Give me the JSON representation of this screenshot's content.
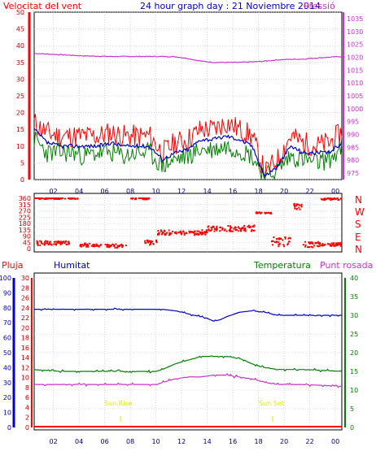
{
  "header": {
    "wind_label": "Velocitat del vent",
    "title": "24 hour graph day : 21 Noviembre 2014",
    "pressure_label": "Pressió"
  },
  "direction_labels": [
    "N",
    "W",
    "S",
    "E",
    "N"
  ],
  "lower_header": {
    "rain_label": "Pluja",
    "humidity_label": "Humitat",
    "temperature_label": "Temperatura",
    "dewpoint_label": "Punt rosada"
  },
  "sun": {
    "sunrise_label": "Sun Rise",
    "sunset_label": "Sun Set",
    "sunrise_hour": 6.8,
    "sunset_hour": 18.9
  },
  "colors": {
    "wind_gust": "#ff0000",
    "wind_avg": "#008000",
    "wind_mean": "#0000cc",
    "pressure": "#cc33cc",
    "direction": "#ff0000",
    "humidity": "#0000cc",
    "temperature": "#008000",
    "dewpoint": "#cc33cc",
    "rain": "#ff0000",
    "sun_text": "#e6e600",
    "grid": "#bbbbbb"
  },
  "chart_data": [
    {
      "type": "line",
      "name": "wind_and_pressure",
      "x_ticks": [
        "02",
        "04",
        "06",
        "08",
        "10",
        "12",
        "14",
        "16",
        "18",
        "20",
        "22",
        "00"
      ],
      "y_left_ticks": [
        "0",
        "5",
        "10",
        "15",
        "20",
        "25",
        "30",
        "35",
        "40",
        "45",
        "50"
      ],
      "y_left_range": [
        0,
        50
      ],
      "y_right_ticks": [
        "975",
        "980",
        "985",
        "990",
        "995",
        "1000",
        "1005",
        "1010",
        "1015",
        "1020",
        "1025",
        "1030",
        "1035"
      ],
      "y_right_range": [
        972.5,
        1037.5
      ],
      "grid": true,
      "series": {
        "pressure_x": [
          0,
          2,
          4,
          6,
          8,
          10,
          11,
          12,
          13,
          14,
          15,
          16,
          17,
          18,
          19,
          20,
          21,
          22,
          23,
          24
        ],
        "pressure_y": [
          1021.5,
          1021,
          1020.5,
          1020.3,
          1020.3,
          1020.3,
          1020.2,
          1019.5,
          1018.5,
          1018,
          1018,
          1018,
          1018.2,
          1018.5,
          1019,
          1019.2,
          1019.3,
          1019.7,
          1020,
          1020.3
        ],
        "gust_x": [
          0,
          1,
          2,
          3,
          4,
          5,
          6,
          7,
          8,
          9,
          10,
          11,
          12,
          13,
          14,
          15,
          16,
          17,
          18,
          19,
          20,
          21,
          22,
          23,
          24
        ],
        "gust_y": [
          17,
          14,
          13,
          13,
          13,
          13,
          14,
          13,
          13,
          13,
          8,
          11,
          12,
          15,
          15,
          17,
          15,
          13,
          2,
          6,
          13,
          11,
          10,
          11,
          14
        ],
        "avg_x": [
          0,
          1,
          2,
          3,
          4,
          5,
          6,
          7,
          8,
          9,
          10,
          11,
          12,
          13,
          14,
          15,
          16,
          17,
          18,
          19,
          20,
          21,
          22,
          23,
          24
        ],
        "avg_y": [
          12,
          8,
          8,
          8,
          7,
          8,
          8,
          7,
          8,
          8,
          4,
          6,
          7,
          9,
          9,
          10,
          9,
          7,
          1,
          3,
          7,
          6,
          5,
          6,
          9
        ],
        "mean_x": [
          0,
          1,
          2,
          3,
          4,
          5,
          6,
          7,
          8,
          9,
          10,
          11,
          12,
          13,
          14,
          15,
          16,
          17,
          18,
          19,
          20,
          21,
          22,
          23,
          24
        ],
        "mean_y": [
          15,
          11,
          10,
          10,
          10,
          10,
          11,
          10,
          10,
          10,
          6,
          8,
          9,
          12,
          12,
          13,
          12,
          10,
          1,
          4,
          10,
          8,
          8,
          8,
          11
        ]
      }
    },
    {
      "type": "scatter",
      "name": "wind_direction",
      "x_ticks": [
        "02",
        "04",
        "06",
        "08",
        "10",
        "12",
        "14",
        "16",
        "18",
        "20",
        "22",
        "00"
      ],
      "y_ticks": [
        "0",
        "45",
        "90",
        "135",
        "180",
        "225",
        "270",
        "315",
        "360"
      ],
      "y_range": [
        0,
        360
      ],
      "grid": true,
      "clusters": [
        {
          "from": 0,
          "to": 3.5,
          "deg": 360,
          "spread": 6
        },
        {
          "from": 0.2,
          "to": 2.8,
          "deg": 40,
          "spread": 16
        },
        {
          "from": 3.5,
          "to": 5.2,
          "deg": 25,
          "spread": 12
        },
        {
          "from": 5.5,
          "to": 7.2,
          "deg": 20,
          "spread": 14
        },
        {
          "from": 7.5,
          "to": 9.0,
          "deg": 360,
          "spread": 8
        },
        {
          "from": 8.6,
          "to": 9.6,
          "deg": 45,
          "spread": 20
        },
        {
          "from": 9.6,
          "to": 13.5,
          "deg": 115,
          "spread": 18
        },
        {
          "from": 13.5,
          "to": 17.2,
          "deg": 145,
          "spread": 22
        },
        {
          "from": 17.3,
          "to": 18.5,
          "deg": 255,
          "spread": 5
        },
        {
          "from": 18.5,
          "to": 20.0,
          "deg": 50,
          "spread": 35
        },
        {
          "from": 20.2,
          "to": 21.0,
          "deg": 300,
          "spread": 20
        },
        {
          "from": 21.0,
          "to": 22.2,
          "deg": 30,
          "spread": 20
        },
        {
          "from": 22.4,
          "to": 24.0,
          "deg": 355,
          "spread": 8
        },
        {
          "from": 22.2,
          "to": 24.0,
          "deg": 30,
          "spread": 12
        }
      ]
    },
    {
      "type": "line",
      "name": "humidity_temperature_dewpoint_rain",
      "x_ticks": [
        "02",
        "04",
        "06",
        "08",
        "10",
        "12",
        "14",
        "16",
        "18",
        "20",
        "22",
        "00"
      ],
      "y_rain_ticks": [
        "0",
        "2",
        "4",
        "6",
        "8",
        "10",
        "12",
        "14",
        "16",
        "18",
        "20",
        "22",
        "24",
        "26",
        "28",
        "30"
      ],
      "y_humidity_ticks": [
        "0",
        "10",
        "20",
        "30",
        "40",
        "50",
        "60",
        "70",
        "80",
        "90",
        "100"
      ],
      "y_temperature_ticks": [
        "0",
        "5",
        "10",
        "15",
        "20",
        "25",
        "30",
        "35",
        "40"
      ],
      "y_temperature_range": [
        0,
        40
      ],
      "grid": true,
      "series": {
        "humidity_x": [
          0,
          9.5,
          10,
          11,
          12,
          13,
          13.5,
          14,
          14.5,
          15,
          16,
          17,
          18,
          18.5,
          19,
          24
        ],
        "humidity_y": [
          79,
          79,
          79,
          78,
          76,
          74,
          73,
          71,
          72,
          74,
          77,
          78,
          77,
          76,
          75,
          75
        ],
        "temperature_x": [
          0,
          2,
          4,
          6,
          8,
          9.5,
          10,
          11,
          12,
          13,
          14,
          15,
          16,
          17,
          18,
          19,
          21,
          24
        ],
        "temperature_y": [
          15.5,
          15,
          15,
          15,
          15,
          15,
          15.5,
          17,
          18,
          19,
          19,
          19,
          18.5,
          17,
          16,
          15.5,
          15.5,
          15
        ],
        "dewpoint_x": [
          0,
          2,
          4,
          6,
          8,
          9.5,
          10,
          11,
          12,
          13,
          14,
          15,
          16,
          17,
          18,
          19,
          21,
          24
        ],
        "dewpoint_y": [
          11.5,
          11.5,
          11.5,
          11.5,
          11.5,
          11.5,
          12,
          13,
          13.5,
          13.5,
          14,
          14,
          13.5,
          13,
          12,
          11.5,
          11.5,
          11
        ],
        "rain_x": [
          0,
          24
        ],
        "rain_y": [
          0,
          0
        ]
      }
    }
  ]
}
